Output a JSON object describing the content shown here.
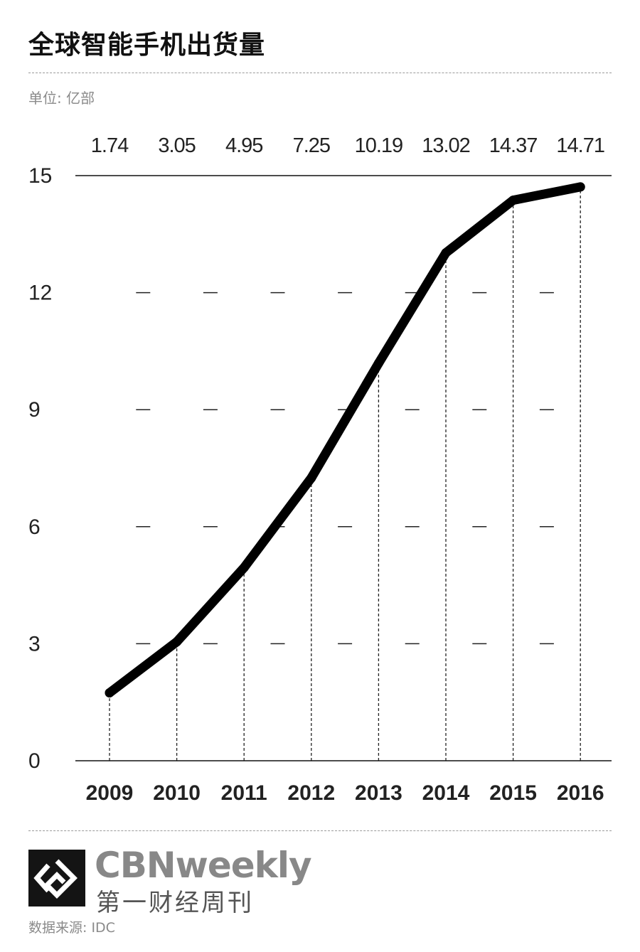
{
  "header": {
    "title": "全球智能手机出货量",
    "unit": "单位: 亿部"
  },
  "footer": {
    "brand_en": "CBNweekly",
    "brand_cn": "第一财经周刊",
    "source": "数据来源: IDC"
  },
  "chart_data": {
    "type": "line",
    "title": "全球智能手机出货量",
    "ylabel": "单位: 亿部",
    "categories": [
      "2009",
      "2010",
      "2011",
      "2012",
      "2013",
      "2014",
      "2015",
      "2016"
    ],
    "values": [
      1.74,
      3.05,
      4.95,
      7.25,
      10.19,
      13.02,
      14.37,
      14.71
    ],
    "value_labels": [
      "1.74",
      "3.05",
      "4.95",
      "7.25",
      "10.19",
      "13.02",
      "14.37",
      "14.71"
    ],
    "yticks": [
      0,
      3,
      6,
      9,
      12,
      15
    ],
    "ylim": [
      0,
      15
    ],
    "grid": "dash marks",
    "line_color": "#000000"
  }
}
